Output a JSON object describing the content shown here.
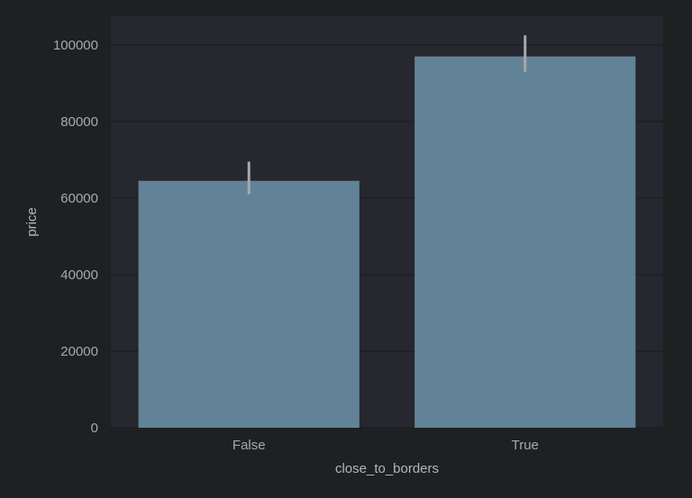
{
  "chart_data": {
    "type": "bar",
    "categories": [
      "False",
      "True"
    ],
    "values": [
      64500,
      97000
    ],
    "error_bars": [
      {
        "low": 61000,
        "high": 69500
      },
      {
        "low": 93000,
        "high": 102500
      }
    ],
    "title": "",
    "xlabel": "close_to_borders",
    "ylabel": "price",
    "ylim": [
      0,
      107500
    ],
    "yticks": [
      0,
      20000,
      40000,
      60000,
      80000,
      100000
    ],
    "grid": true,
    "colors": {
      "figure_background": "#1f2022",
      "plot_background": "#26272f",
      "bar": "#628397",
      "error_bar": "#a7a9ad",
      "gridline": "#1c1d22"
    }
  }
}
